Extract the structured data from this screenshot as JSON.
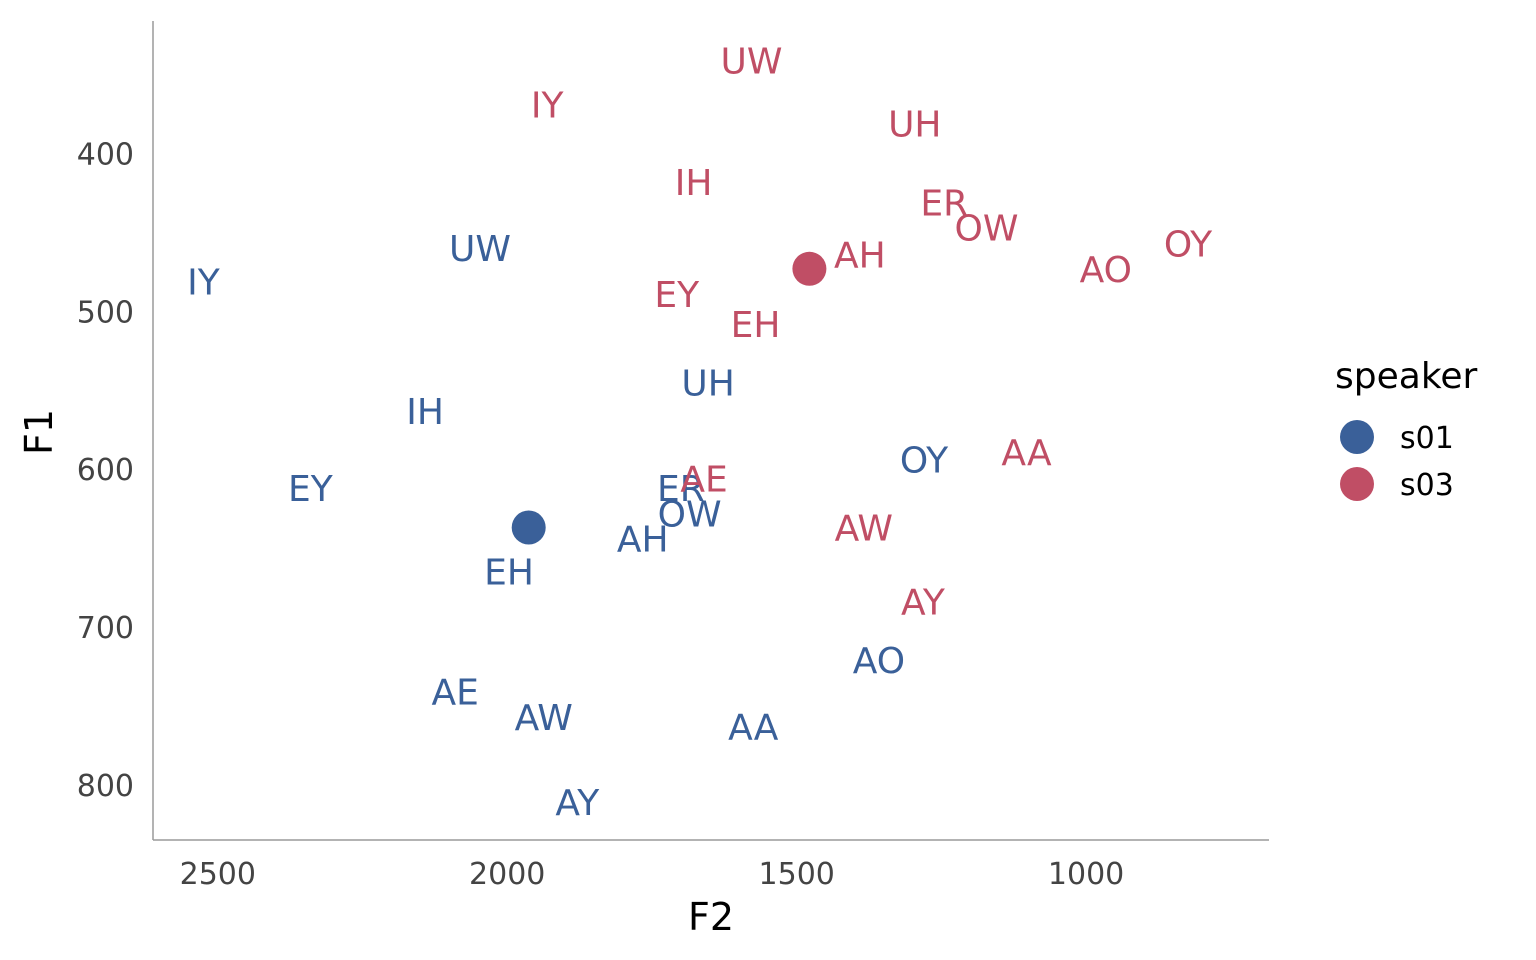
{
  "chart_data": {
    "type": "scatter",
    "xlabel": "F2",
    "ylabel": "F1",
    "x_reversed": true,
    "y_reversed": true,
    "xlim": [
      2612,
      684
    ],
    "ylim": [
      316,
      835
    ],
    "x_ticks": [
      2500,
      2000,
      1500,
      1000
    ],
    "y_ticks": [
      400,
      500,
      600,
      700,
      800
    ],
    "grid": false,
    "legend": {
      "title": "speaker",
      "position": "right"
    },
    "series": [
      {
        "name": "s01",
        "color": "#3a6099",
        "mean": {
          "F2": 1963,
          "F1": 637
        },
        "points": [
          {
            "label": "IY",
            "F2": 2525,
            "F1": 481
          },
          {
            "label": "UW",
            "F2": 2047,
            "F1": 460
          },
          {
            "label": "IH",
            "F2": 2142,
            "F1": 563
          },
          {
            "label": "EY",
            "F2": 2340,
            "F1": 612
          },
          {
            "label": "EH",
            "F2": 1997,
            "F1": 665
          },
          {
            "label": "UH",
            "F2": 1653,
            "F1": 545
          },
          {
            "label": "ER",
            "F2": 1700,
            "F1": 612
          },
          {
            "label": "OW",
            "F2": 1685,
            "F1": 628
          },
          {
            "label": "AH",
            "F2": 1766,
            "F1": 644
          },
          {
            "label": "OY",
            "F2": 1280,
            "F1": 594
          },
          {
            "label": "AO",
            "F2": 1358,
            "F1": 721
          },
          {
            "label": "AE",
            "F2": 2090,
            "F1": 741
          },
          {
            "label": "AW",
            "F2": 1937,
            "F1": 757
          },
          {
            "label": "AA",
            "F2": 1575,
            "F1": 763
          },
          {
            "label": "AY",
            "F2": 1879,
            "F1": 811
          }
        ]
      },
      {
        "name": "s03",
        "color": "#c04e65",
        "mean": {
          "F2": 1478,
          "F1": 473
        },
        "points": [
          {
            "label": "UW",
            "F2": 1578,
            "F1": 341
          },
          {
            "label": "IY",
            "F2": 1931,
            "F1": 369
          },
          {
            "label": "UH",
            "F2": 1296,
            "F1": 381
          },
          {
            "label": "IH",
            "F2": 1678,
            "F1": 418
          },
          {
            "label": "ER",
            "F2": 1245,
            "F1": 431
          },
          {
            "label": "OW",
            "F2": 1172,
            "F1": 447
          },
          {
            "label": "OY",
            "F2": 824,
            "F1": 457
          },
          {
            "label": "AH",
            "F2": 1391,
            "F1": 464
          },
          {
            "label": "AO",
            "F2": 966,
            "F1": 473
          },
          {
            "label": "EY",
            "F2": 1707,
            "F1": 489
          },
          {
            "label": "EH",
            "F2": 1571,
            "F1": 508
          },
          {
            "label": "AA",
            "F2": 1103,
            "F1": 589
          },
          {
            "label": "AE",
            "F2": 1660,
            "F1": 606
          },
          {
            "label": "AW",
            "F2": 1384,
            "F1": 637
          },
          {
            "label": "AY",
            "F2": 1282,
            "F1": 684
          }
        ]
      }
    ]
  }
}
